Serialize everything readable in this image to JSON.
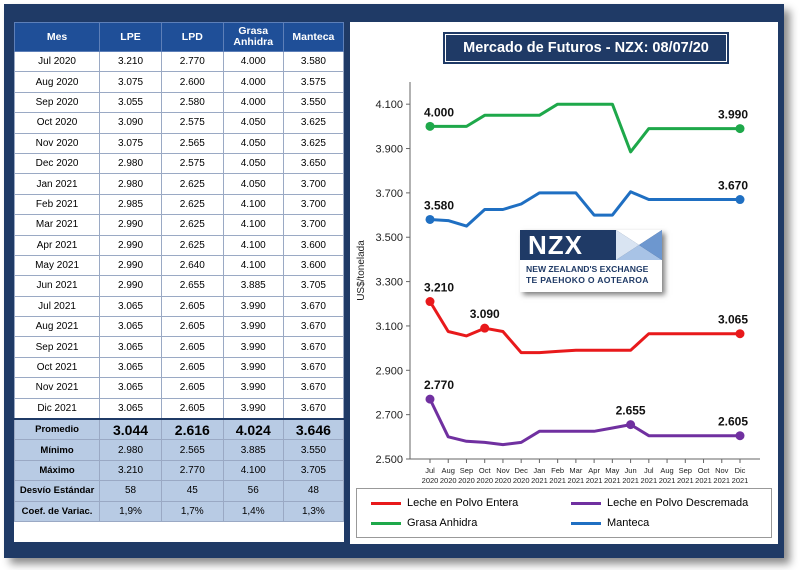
{
  "table": {
    "headers": [
      "Mes",
      "LPE",
      "LPD",
      "Grasa Anhidra",
      "Manteca"
    ],
    "rows": [
      [
        "Jul 2020",
        "3.210",
        "2.770",
        "4.000",
        "3.580"
      ],
      [
        "Aug 2020",
        "3.075",
        "2.600",
        "4.000",
        "3.575"
      ],
      [
        "Sep 2020",
        "3.055",
        "2.580",
        "4.000",
        "3.550"
      ],
      [
        "Oct 2020",
        "3.090",
        "2.575",
        "4.050",
        "3.625"
      ],
      [
        "Nov 2020",
        "3.075",
        "2.565",
        "4.050",
        "3.625"
      ],
      [
        "Dec 2020",
        "2.980",
        "2.575",
        "4.050",
        "3.650"
      ],
      [
        "Jan 2021",
        "2.980",
        "2.625",
        "4.050",
        "3.700"
      ],
      [
        "Feb 2021",
        "2.985",
        "2.625",
        "4.100",
        "3.700"
      ],
      [
        "Mar 2021",
        "2.990",
        "2.625",
        "4.100",
        "3.700"
      ],
      [
        "Apr 2021",
        "2.990",
        "2.625",
        "4.100",
        "3.600"
      ],
      [
        "May 2021",
        "2.990",
        "2.640",
        "4.100",
        "3.600"
      ],
      [
        "Jun 2021",
        "2.990",
        "2.655",
        "3.885",
        "3.705"
      ],
      [
        "Jul 2021",
        "3.065",
        "2.605",
        "3.990",
        "3.670"
      ],
      [
        "Aug 2021",
        "3.065",
        "2.605",
        "3.990",
        "3.670"
      ],
      [
        "Sep 2021",
        "3.065",
        "2.605",
        "3.990",
        "3.670"
      ],
      [
        "Oct 2021",
        "3.065",
        "2.605",
        "3.990",
        "3.670"
      ],
      [
        "Nov 2021",
        "3.065",
        "2.605",
        "3.990",
        "3.670"
      ],
      [
        "Dic 2021",
        "3.065",
        "2.605",
        "3.990",
        "3.670"
      ]
    ],
    "stats": [
      [
        "Promedio",
        "3.044",
        "2.616",
        "4.024",
        "3.646"
      ],
      [
        "Mínimo",
        "2.980",
        "2.565",
        "3.885",
        "3.550"
      ],
      [
        "Máximo",
        "3.210",
        "2.770",
        "4.100",
        "3.705"
      ],
      [
        "Desvío Estándar",
        "58",
        "45",
        "56",
        "48"
      ],
      [
        "Coef. de Variac.",
        "1,9%",
        "1,7%",
        "1,4%",
        "1,3%"
      ]
    ]
  },
  "logo": {
    "name": "NZX",
    "line1": "NEW ZEALAND'S EXCHANGE",
    "line2": "TE PAEHOKO O AOTEAROA"
  },
  "chart_data": {
    "type": "line",
    "title": "Mercado de Futuros - NZX: 08/07/20",
    "xlabel": "",
    "ylabel": "US$/tonelada",
    "ylim": [
      2500,
      4200
    ],
    "yticks": [
      2500,
      2700,
      2900,
      3100,
      3300,
      3500,
      3700,
      3900,
      4100
    ],
    "ytick_labels": [
      "2.500",
      "2.700",
      "2.900",
      "3.100",
      "3.300",
      "3.500",
      "3.700",
      "3.900",
      "4.100"
    ],
    "categories": [
      "Jul 2020",
      "Aug 2020",
      "Sep 2020",
      "Oct 2020",
      "Nov 2020",
      "Dec 2020",
      "Jan 2021",
      "Feb 2021",
      "Mar 2021",
      "Apr 2021",
      "May 2021",
      "Jun 2021",
      "Jul 2021",
      "Aug 2021",
      "Sep 2021",
      "Oct 2021",
      "Nov 2021",
      "Dic 2021"
    ],
    "x_tick_top": [
      "Jul",
      "Aug",
      "Sep",
      "Oct",
      "Nov",
      "Dec",
      "Jan",
      "Feb",
      "Mar",
      "Apr",
      "May",
      "Jun",
      "Jul",
      "Aug",
      "Sep",
      "Oct",
      "Nov",
      "Dic"
    ],
    "x_tick_bottom": [
      "2020",
      "2020",
      "2020",
      "2020",
      "2020",
      "2020",
      "2021",
      "2021",
      "2021",
      "2021",
      "2021",
      "2021",
      "2021",
      "2021",
      "2021",
      "2021",
      "2021",
      "2021"
    ],
    "series": [
      {
        "name": "Leche en Polvo Entera",
        "color": "#e8191b",
        "values": [
          3210,
          3075,
          3055,
          3090,
          3075,
          2980,
          2980,
          2985,
          2990,
          2990,
          2990,
          2990,
          3065,
          3065,
          3065,
          3065,
          3065,
          3065
        ],
        "markers": [
          0,
          3,
          17
        ],
        "labels": [
          {
            "i": 0,
            "text": "3.210"
          },
          {
            "i": 3,
            "text": "3.090"
          },
          {
            "i": 17,
            "text": "3.065"
          }
        ]
      },
      {
        "name": "Leche en Polvo Descremada",
        "color": "#7030a0",
        "values": [
          2770,
          2600,
          2580,
          2575,
          2565,
          2575,
          2625,
          2625,
          2625,
          2625,
          2640,
          2655,
          2605,
          2605,
          2605,
          2605,
          2605,
          2605
        ],
        "markers": [
          0,
          11,
          17
        ],
        "labels": [
          {
            "i": 0,
            "text": "2.770"
          },
          {
            "i": 11,
            "text": "2.655"
          },
          {
            "i": 17,
            "text": "2.605"
          }
        ]
      },
      {
        "name": "Grasa Anhidra",
        "color": "#1ea84a",
        "values": [
          4000,
          4000,
          4000,
          4050,
          4050,
          4050,
          4050,
          4100,
          4100,
          4100,
          4100,
          3885,
          3990,
          3990,
          3990,
          3990,
          3990,
          3990
        ],
        "markers": [
          0,
          17
        ],
        "labels": [
          {
            "i": 0,
            "text": "4.000"
          },
          {
            "i": 17,
            "text": "3.990"
          }
        ]
      },
      {
        "name": "Manteca",
        "color": "#1f6fc2",
        "values": [
          3580,
          3575,
          3550,
          3625,
          3625,
          3650,
          3700,
          3700,
          3700,
          3600,
          3600,
          3705,
          3670,
          3670,
          3670,
          3670,
          3670,
          3670
        ],
        "markers": [
          0,
          17
        ],
        "labels": [
          {
            "i": 0,
            "text": "3.580"
          },
          {
            "i": 17,
            "text": "3.670"
          }
        ]
      }
    ],
    "legend": "bottom"
  }
}
